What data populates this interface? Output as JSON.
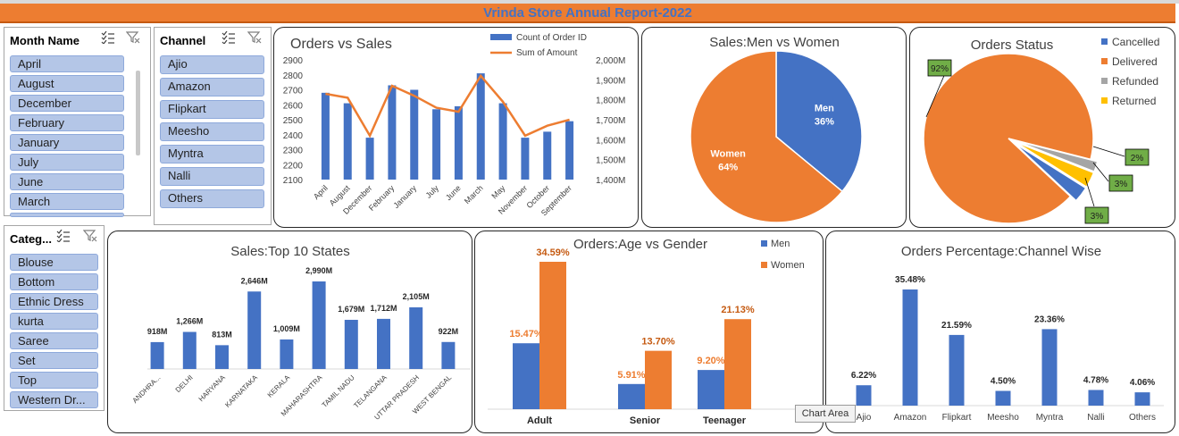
{
  "report_title": "Vrinda Store Annual Report-2022",
  "slicers": {
    "month": {
      "title": "Month Name",
      "items": [
        "April",
        "August",
        "December",
        "February",
        "January",
        "July",
        "June",
        "March"
      ]
    },
    "channel": {
      "title": "Channel",
      "items": [
        "Ajio",
        "Amazon",
        "Flipkart",
        "Meesho",
        "Myntra",
        "Nalli",
        "Others"
      ]
    },
    "category": {
      "title": "Categ...",
      "items": [
        "Blouse",
        "Bottom",
        "Ethnic Dress",
        "kurta",
        "Saree",
        "Set",
        "Top",
        "Western Dr..."
      ]
    }
  },
  "tooltip": "Chart Area",
  "colors": {
    "blue": "#4472c4",
    "orange": "#ed7d31",
    "gray": "#a5a5a5",
    "yellow": "#ffc000",
    "green": "#70ad47"
  },
  "chart_data": [
    {
      "id": "orders_vs_sales",
      "type": "bar",
      "title": "Orders vs Sales",
      "categories": [
        "April",
        "August",
        "December",
        "February",
        "January",
        "July",
        "June",
        "March",
        "May",
        "November",
        "October",
        "September"
      ],
      "series": [
        {
          "name": "Count of Order ID",
          "type": "bar",
          "axis": "left",
          "values": [
            2680,
            2610,
            2380,
            2730,
            2700,
            2570,
            2590,
            2810,
            2610,
            2380,
            2420,
            2490
          ]
        },
        {
          "name": "Sum of Amount",
          "type": "line",
          "axis": "right",
          "values": [
            1830,
            1810,
            1620,
            1870,
            1820,
            1760,
            1740,
            1920,
            1790,
            1620,
            1670,
            1700
          ]
        }
      ],
      "ylim": [
        2100,
        2900
      ],
      "yticks": [
        "2900",
        "2800",
        "2700",
        "2600",
        "2500",
        "2400",
        "2300",
        "2200",
        "2100"
      ],
      "y2lim": [
        1400,
        2000
      ],
      "y2ticks": [
        "2,000M",
        "1,900M",
        "1,800M",
        "1,700M",
        "1,600M",
        "1,500M",
        "1,400M"
      ]
    },
    {
      "id": "sales_men_women",
      "type": "pie",
      "title": "Sales:Men vs Women",
      "slices": [
        {
          "label": "Men",
          "value": 36,
          "text": "36%"
        },
        {
          "label": "Women",
          "value": 64,
          "text": "64%"
        }
      ]
    },
    {
      "id": "orders_status",
      "type": "pie",
      "title": "Orders Status",
      "legend": [
        "Cancelled",
        "Delivered",
        "Refunded",
        "Returned"
      ],
      "slices": [
        {
          "label": "Cancelled",
          "value": 3,
          "text": "3%"
        },
        {
          "label": "Delivered",
          "value": 92,
          "text": "92%"
        },
        {
          "label": "Refunded",
          "value": 2,
          "text": "2%"
        },
        {
          "label": "Returned",
          "value": 3,
          "text": "3%"
        }
      ]
    },
    {
      "id": "top_states",
      "type": "bar",
      "title": "Sales:Top 10 States",
      "categories": [
        "ANDHRA...",
        "DELHI",
        "HARYANA",
        "KARNATAKA",
        "KERALA",
        "MAHARASHTRA",
        "TAMIL NADU",
        "TELANGANA",
        "UTTAR PRADESH",
        "WEST BENGAL"
      ],
      "values": [
        918,
        1266,
        813,
        2646,
        1009,
        2990,
        1679,
        1712,
        2105,
        922
      ],
      "labels": [
        "918M",
        "1,266M",
        "813M",
        "2,646M",
        "1,009M",
        "2,990M",
        "1,679M",
        "1,712M",
        "2,105M",
        "922M"
      ]
    },
    {
      "id": "age_gender",
      "type": "bar",
      "title": "Orders:Age vs Gender",
      "categories": [
        "Adult",
        "Senior",
        "Teenager"
      ],
      "series": [
        {
          "name": "Men",
          "values": [
            15.47,
            5.91,
            9.2
          ],
          "labels": [
            "15.47%",
            "5.91%",
            "9.20%"
          ]
        },
        {
          "name": "Women",
          "values": [
            34.59,
            13.7,
            21.13
          ],
          "labels": [
            "34.59%",
            "13.70%",
            "21.13%"
          ]
        }
      ]
    },
    {
      "id": "channel_wise",
      "type": "bar",
      "title": "Orders Percentage:Channel Wise",
      "categories": [
        "Ajio",
        "Amazon",
        "Flipkart",
        "Meesho",
        "Myntra",
        "Nalli",
        "Others"
      ],
      "values": [
        6.22,
        35.48,
        21.59,
        4.5,
        23.36,
        4.78,
        4.06
      ],
      "labels": [
        "6.22%",
        "35.48%",
        "21.59%",
        "4.50%",
        "23.36%",
        "4.78%",
        "4.06%"
      ]
    }
  ]
}
